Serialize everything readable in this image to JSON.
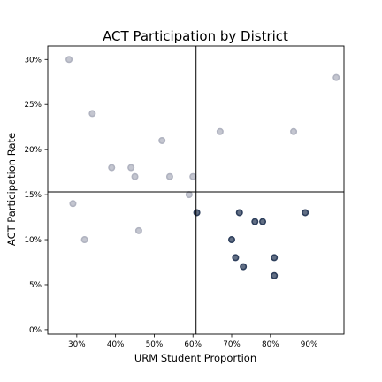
{
  "chart_data": {
    "type": "scatter",
    "title": "ACT Participation by District",
    "xlabel": "URM Student Proportion",
    "ylabel": "ACT Participation Rate",
    "xlim": [
      0.225,
      0.99
    ],
    "ylim": [
      -0.005,
      0.315
    ],
    "x_ticks": [
      {
        "value": 0.3,
        "label": "30%"
      },
      {
        "value": 0.4,
        "label": "40%"
      },
      {
        "value": 0.5,
        "label": "50%"
      },
      {
        "value": 0.6,
        "label": "60%"
      },
      {
        "value": 0.7,
        "label": "70%"
      },
      {
        "value": 0.8,
        "label": "80%"
      },
      {
        "value": 0.9,
        "label": "90%"
      }
    ],
    "y_ticks": [
      {
        "value": 0.0,
        "label": "0%"
      },
      {
        "value": 0.05,
        "label": "5%"
      },
      {
        "value": 0.1,
        "label": "10%"
      },
      {
        "value": 0.15,
        "label": "15%"
      },
      {
        "value": 0.2,
        "label": "20%"
      },
      {
        "value": 0.25,
        "label": "25%"
      },
      {
        "value": 0.3,
        "label": "30%"
      }
    ],
    "reference_lines": {
      "x": 0.608,
      "y": 0.153
    },
    "grid": false,
    "legend": false,
    "series": [
      {
        "color": "#b0b3c0",
        "x": [
          0.28,
          0.29,
          0.32,
          0.34,
          0.39,
          0.44,
          0.45,
          0.46,
          0.52,
          0.54,
          0.59,
          0.6,
          0.67,
          0.86,
          0.97
        ],
        "y": [
          0.3,
          0.14,
          0.1,
          0.24,
          0.18,
          0.18,
          0.17,
          0.11,
          0.21,
          0.17,
          0.15,
          0.17,
          0.22,
          0.22,
          0.28
        ]
      },
      {
        "color": "#2e3f5c",
        "x": [
          0.61,
          0.7,
          0.71,
          0.72,
          0.73,
          0.76,
          0.78,
          0.81,
          0.81,
          0.89
        ],
        "y": [
          0.13,
          0.1,
          0.08,
          0.13,
          0.07,
          0.12,
          0.12,
          0.08,
          0.06,
          0.13
        ]
      }
    ]
  }
}
